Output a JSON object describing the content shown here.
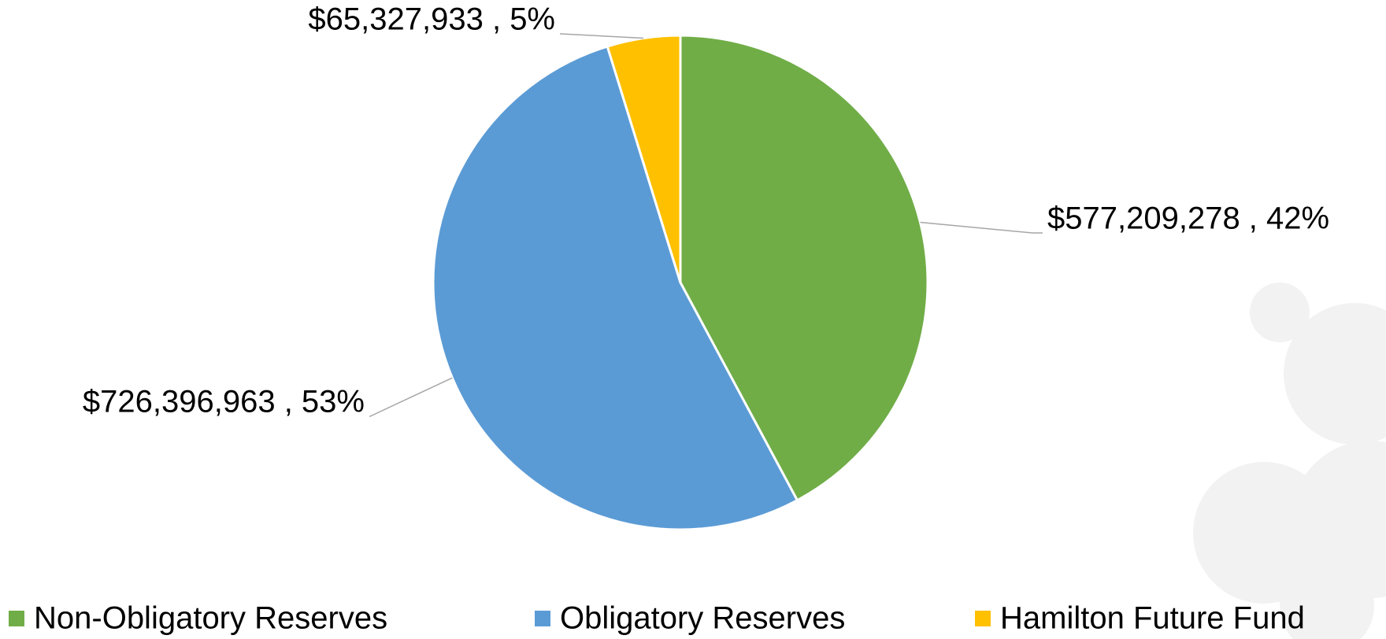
{
  "chart_data": {
    "type": "pie",
    "categories": [
      "Non-Obligatory Reserves",
      "Obligatory Reserves",
      "Hamilton Future Fund"
    ],
    "values": [
      577209278,
      726396963,
      65327933
    ],
    "value_labels": [
      "$577,209,278 , 42%",
      "$726,396,963 , 53%",
      "$65,327,933 , 5%"
    ],
    "colors": [
      "#70ad47",
      "#5b9bd5",
      "#ffc000"
    ],
    "legend": "bottom"
  }
}
